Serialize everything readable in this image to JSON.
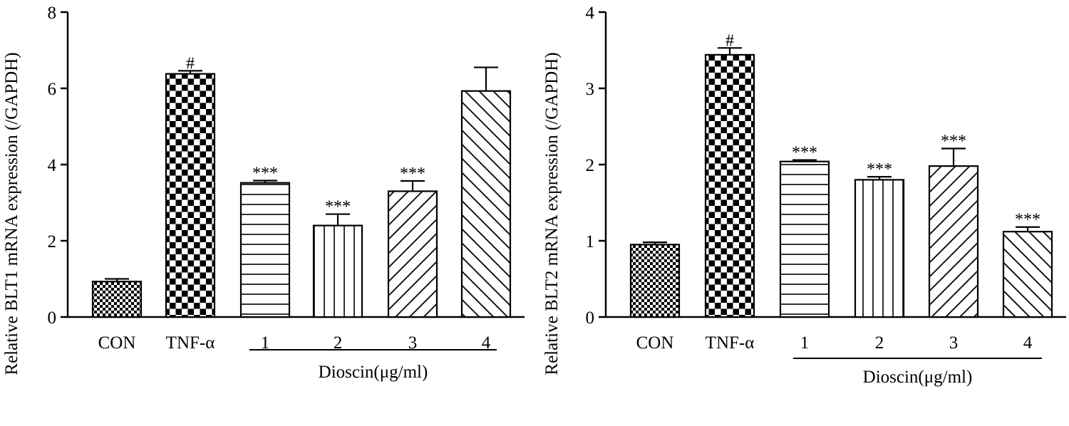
{
  "chart_data": [
    {
      "type": "bar",
      "ylabel": "Relative BLT1 mRNA expression (/GAPDH)",
      "ylim": [
        0,
        8
      ],
      "yticks": [
        0,
        2,
        4,
        6,
        8
      ],
      "categories": [
        "CON",
        "TNF-α",
        "1",
        "2",
        "3",
        "4"
      ],
      "group_label": "Dioscin(μg/ml)",
      "values": [
        0.93,
        6.38,
        3.52,
        2.4,
        3.3,
        5.93
      ],
      "errors": [
        0.07,
        0.08,
        0.06,
        0.3,
        0.27,
        0.62
      ],
      "significance": [
        "",
        "#",
        "***",
        "***",
        "***",
        ""
      ],
      "patterns": [
        "checker-small",
        "checker-large",
        "hlines",
        "vlines",
        "diag-right",
        "diag-left"
      ]
    },
    {
      "type": "bar",
      "ylabel": "Relative BLT2 mRNA expression (/GAPDH)",
      "ylim": [
        0,
        4
      ],
      "yticks": [
        0,
        1,
        2,
        3,
        4
      ],
      "categories": [
        "CON",
        "TNF-α",
        "1",
        "2",
        "3",
        "4"
      ],
      "group_label": "Dioscin(μg/ml)",
      "values": [
        0.95,
        3.44,
        2.04,
        1.8,
        1.98,
        1.12
      ],
      "errors": [
        0.03,
        0.09,
        0.02,
        0.04,
        0.23,
        0.06
      ],
      "significance": [
        "",
        "#",
        "***",
        "***",
        "***",
        "***"
      ],
      "patterns": [
        "checker-small",
        "checker-large",
        "hlines",
        "vlines",
        "diag-right",
        "diag-left"
      ]
    }
  ]
}
